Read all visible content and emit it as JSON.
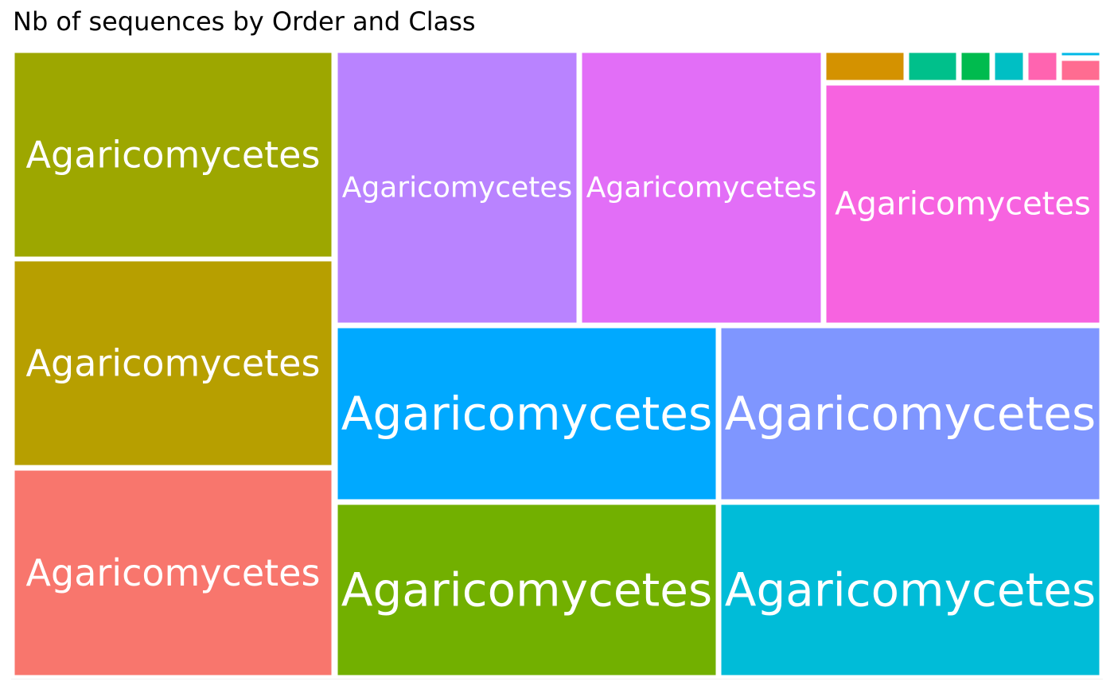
{
  "chart_data": {
    "type": "treemap",
    "title": "Nb of sequences by Order and Class",
    "tiles": [
      {
        "label": "Agaricomycetes",
        "color": "#9da700"
      },
      {
        "label": "Agaricomycetes",
        "color": "#b79f00"
      },
      {
        "label": "Agaricomycetes",
        "color": "#f8766d"
      },
      {
        "label": "Agaricomycetes",
        "color": "#b983ff"
      },
      {
        "label": "Agaricomycetes",
        "color": "#e26ef7"
      },
      {
        "label": "Agaricomycetes",
        "color": "#f763e0"
      },
      {
        "label": "Agaricomycetes",
        "color": "#00a9ff"
      },
      {
        "label": "Agaricomycetes",
        "color": "#7f96ff"
      },
      {
        "label": "Agaricomycetes",
        "color": "#72b000"
      },
      {
        "label": "Agaricomycetes",
        "color": "#00bcd8"
      },
      {
        "label": "",
        "color": "#d49200"
      },
      {
        "label": "",
        "color": "#00c08b"
      },
      {
        "label": "",
        "color": "#00bb4e"
      },
      {
        "label": "",
        "color": "#00bfc4"
      },
      {
        "label": "",
        "color": "#ff64b0"
      },
      {
        "label": "",
        "color": "#ff6c91"
      },
      {
        "label": "",
        "color": "#00b8e7"
      }
    ]
  }
}
